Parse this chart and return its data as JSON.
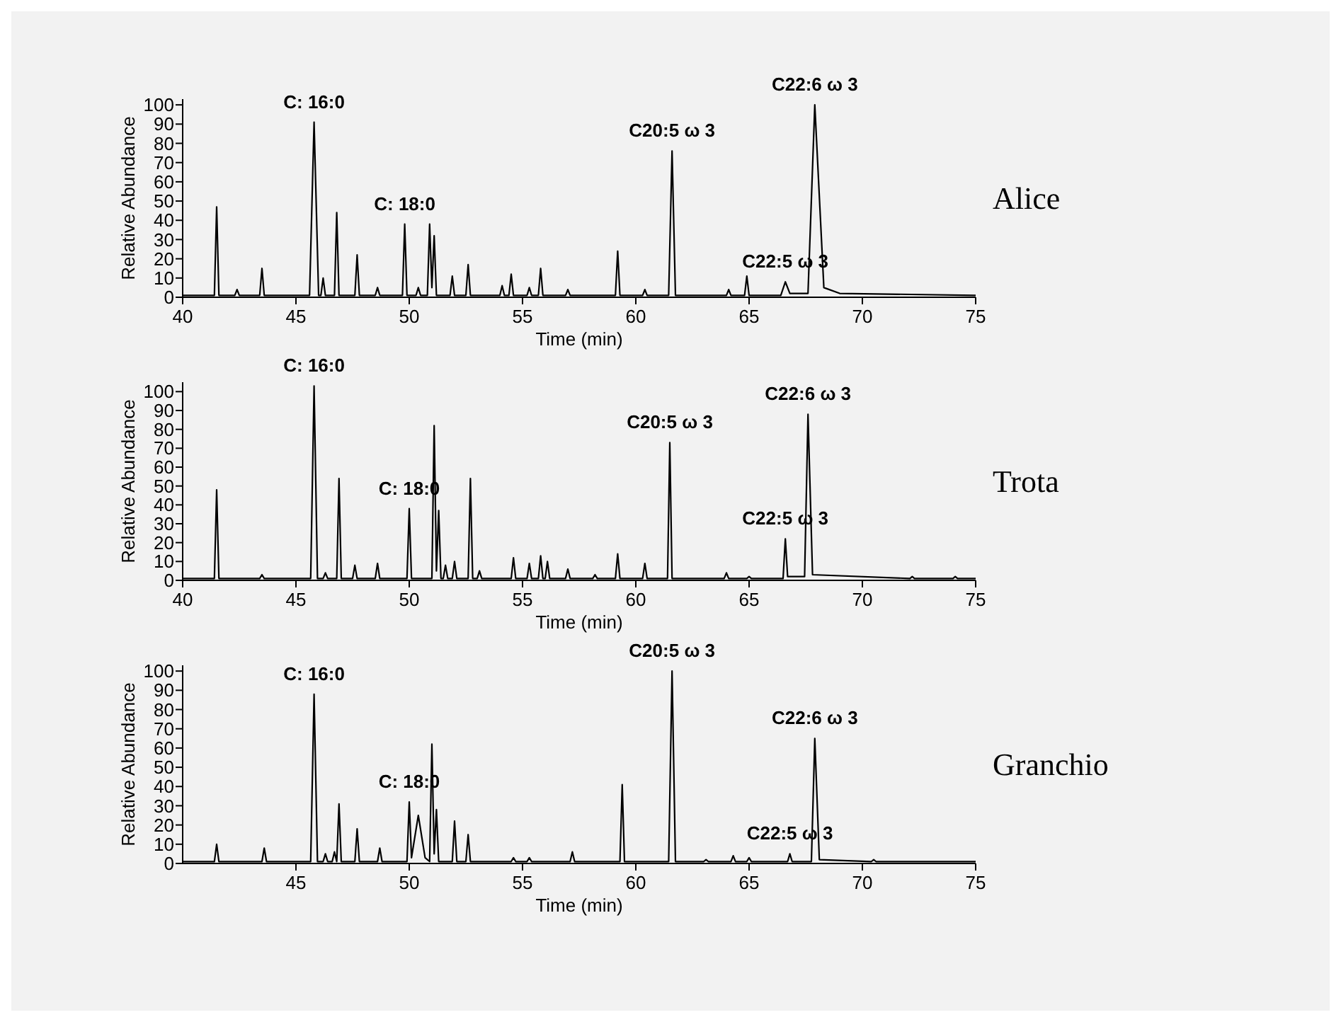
{
  "chart_data": [
    {
      "type": "line",
      "title": "Alice",
      "xlabel": "Time (min)",
      "ylabel": "Relative Abundance",
      "xlim": [
        40,
        75
      ],
      "ylim": [
        0,
        103
      ],
      "xticks": [
        40,
        45,
        50,
        55,
        60,
        65,
        70,
        75
      ],
      "yticks": [
        0,
        10,
        20,
        30,
        40,
        50,
        60,
        70,
        80,
        90,
        100
      ],
      "series": [
        {
          "color": "#000000",
          "x": [
            40,
            41.4,
            41.5,
            41.6,
            42.3,
            42.4,
            42.5,
            43.4,
            43.5,
            43.6,
            45.6,
            45.8,
            46.0,
            46.1,
            46.2,
            46.3,
            46.7,
            46.8,
            46.9,
            47.6,
            47.7,
            47.8,
            48.5,
            48.6,
            48.7,
            49.7,
            49.8,
            49.9,
            50.3,
            50.4,
            50.5,
            50.8,
            50.9,
            51.0,
            51.1,
            51.2,
            51.8,
            51.9,
            52.0,
            52.5,
            52.6,
            52.7,
            54.0,
            54.1,
            54.2,
            54.4,
            54.5,
            54.6,
            55.2,
            55.3,
            55.4,
            55.7,
            55.8,
            55.9,
            56.9,
            57.0,
            57.1,
            59.1,
            59.2,
            59.3,
            60.3,
            60.4,
            60.5,
            61.45,
            61.6,
            61.75,
            64.0,
            64.1,
            64.2,
            64.8,
            64.9,
            65.0,
            66.4,
            66.6,
            66.8,
            67.6,
            67.9,
            68.3,
            69,
            75
          ],
          "values": [
            1,
            1,
            47,
            1,
            1,
            4,
            1,
            1,
            15,
            1,
            1,
            91,
            1,
            1,
            10,
            1,
            1,
            44,
            1,
            1,
            22,
            1,
            1,
            5,
            1,
            1,
            38,
            1,
            1,
            5,
            1,
            1,
            38,
            5,
            32,
            1,
            1,
            11,
            1,
            1,
            17,
            1,
            1,
            6,
            1,
            1,
            12,
            1,
            1,
            5,
            1,
            1,
            15,
            1,
            1,
            4,
            1,
            1,
            24,
            1,
            1,
            4,
            1,
            1,
            76,
            1,
            1,
            4,
            1,
            1,
            11,
            1,
            1,
            8,
            2,
            2,
            100,
            5,
            2,
            1
          ]
        }
      ],
      "annotations": [
        {
          "text": "C: 16:0",
          "x": 45.8,
          "y": 91
        },
        {
          "text": "C: 18:0",
          "x": 49.8,
          "y": 38
        },
        {
          "text": "C20:5 ω 3",
          "x": 61.6,
          "y": 76
        },
        {
          "text": "C22:6 ω 3",
          "x": 67.9,
          "y": 100
        },
        {
          "text": "C22:5 ω 3",
          "x": 66.6,
          "y": 8
        }
      ]
    },
    {
      "type": "line",
      "title": "Trota",
      "xlabel": "Time (min)",
      "ylabel": "Relative Abundance",
      "xlim": [
        40,
        75
      ],
      "ylim": [
        0,
        105
      ],
      "xticks": [
        40,
        45,
        50,
        55,
        60,
        65,
        70,
        75
      ],
      "yticks": [
        0,
        10,
        20,
        30,
        40,
        50,
        60,
        70,
        80,
        90,
        100
      ],
      "series": [
        {
          "color": "#000000",
          "x": [
            40,
            41.4,
            41.5,
            41.6,
            43.4,
            43.5,
            43.6,
            45.65,
            45.8,
            45.95,
            46.2,
            46.3,
            46.4,
            46.8,
            46.9,
            47.0,
            47.5,
            47.6,
            47.7,
            48.5,
            48.6,
            48.7,
            49.9,
            50.0,
            50.1,
            51.0,
            51.1,
            51.2,
            51.3,
            51.4,
            51.5,
            51.6,
            51.7,
            51.9,
            52.0,
            52.1,
            52.6,
            52.7,
            52.8,
            53.0,
            53.1,
            53.2,
            54.5,
            54.6,
            54.7,
            55.2,
            55.3,
            55.4,
            55.7,
            55.8,
            55.9,
            56.0,
            56.1,
            56.2,
            56.9,
            57.0,
            57.1,
            58.1,
            58.2,
            58.3,
            59.1,
            59.2,
            59.3,
            60.3,
            60.4,
            60.5,
            61.4,
            61.5,
            61.6,
            63.9,
            64.0,
            64.1,
            64.9,
            65.0,
            65.1,
            66.5,
            66.6,
            66.7,
            67.45,
            67.6,
            67.8,
            72.1,
            72.2,
            72.3,
            74.0,
            74.1,
            74.2,
            75
          ],
          "values": [
            1,
            1,
            48,
            1,
            1,
            3,
            1,
            1,
            103,
            1,
            1,
            4,
            1,
            1,
            54,
            1,
            1,
            8,
            1,
            1,
            9,
            1,
            1,
            38,
            1,
            1,
            82,
            5,
            37,
            1,
            1,
            8,
            1,
            1,
            10,
            1,
            1,
            54,
            1,
            1,
            5,
            1,
            1,
            12,
            1,
            1,
            9,
            1,
            1,
            13,
            1,
            1,
            10,
            1,
            1,
            6,
            1,
            1,
            3,
            1,
            1,
            14,
            1,
            1,
            9,
            1,
            1,
            73,
            1,
            1,
            4,
            1,
            1,
            2,
            1,
            1,
            22,
            2,
            2,
            88,
            3,
            1,
            2,
            1,
            1,
            2,
            1,
            1
          ]
        }
      ],
      "annotations": [
        {
          "text": "C: 16:0",
          "x": 45.8,
          "y": 103
        },
        {
          "text": "C: 18:0",
          "x": 50.0,
          "y": 38
        },
        {
          "text": "C20:5 ω 3",
          "x": 61.5,
          "y": 73
        },
        {
          "text": "C22:6 ω 3",
          "x": 67.6,
          "y": 88
        },
        {
          "text": "C22:5 ω 3",
          "x": 66.6,
          "y": 22
        }
      ]
    },
    {
      "type": "line",
      "title": "Granchio",
      "xlabel": "Time (min)",
      "ylabel": "Relative Abundance",
      "xlim": [
        40,
        75
      ],
      "ylim": [
        0,
        103
      ],
      "xticks": [
        45,
        50,
        55,
        60,
        65,
        70,
        75
      ],
      "yticks": [
        0,
        10,
        20,
        30,
        40,
        50,
        60,
        70,
        80,
        90,
        100
      ],
      "series": [
        {
          "color": "#000000",
          "x": [
            40,
            41.4,
            41.5,
            41.6,
            43.5,
            43.6,
            43.7,
            45.65,
            45.8,
            45.95,
            46.2,
            46.3,
            46.4,
            46.6,
            46.7,
            46.8,
            46.9,
            47.0,
            47.6,
            47.7,
            47.8,
            48.6,
            48.7,
            48.8,
            49.9,
            50.0,
            50.1,
            50.4,
            50.7,
            50.9,
            51.0,
            51.1,
            51.2,
            51.3,
            51.9,
            52.0,
            52.1,
            52.5,
            52.6,
            52.7,
            54.5,
            54.6,
            54.7,
            55.2,
            55.3,
            55.4,
            57.1,
            57.2,
            57.3,
            59.3,
            59.4,
            59.5,
            61.45,
            61.6,
            61.75,
            63.0,
            63.1,
            63.2,
            64.2,
            64.3,
            64.4,
            64.9,
            65.0,
            65.1,
            66.7,
            66.8,
            66.9,
            67.75,
            67.9,
            68.1,
            70.4,
            70.5,
            70.6,
            75
          ],
          "values": [
            1,
            1,
            10,
            1,
            1,
            8,
            1,
            1,
            88,
            1,
            1,
            5,
            1,
            1,
            6,
            1,
            31,
            1,
            1,
            18,
            1,
            1,
            8,
            1,
            1,
            32,
            3,
            25,
            3,
            1,
            62,
            5,
            28,
            1,
            1,
            22,
            1,
            1,
            15,
            1,
            1,
            3,
            1,
            1,
            3,
            1,
            1,
            6,
            1,
            1,
            41,
            1,
            1,
            100,
            1,
            1,
            2,
            1,
            1,
            4,
            1,
            1,
            3,
            1,
            1,
            5,
            1,
            1,
            65,
            2,
            1,
            2,
            1,
            1
          ]
        }
      ],
      "annotations": [
        {
          "text": "C: 16:0",
          "x": 45.8,
          "y": 88
        },
        {
          "text": "C: 18:0",
          "x": 50.0,
          "y": 32
        },
        {
          "text": "C20:5 ω 3",
          "x": 61.6,
          "y": 100
        },
        {
          "text": "C22:6 ω 3",
          "x": 67.9,
          "y": 65
        },
        {
          "text": "C22:5 ω 3",
          "x": 66.8,
          "y": 5
        }
      ]
    }
  ]
}
